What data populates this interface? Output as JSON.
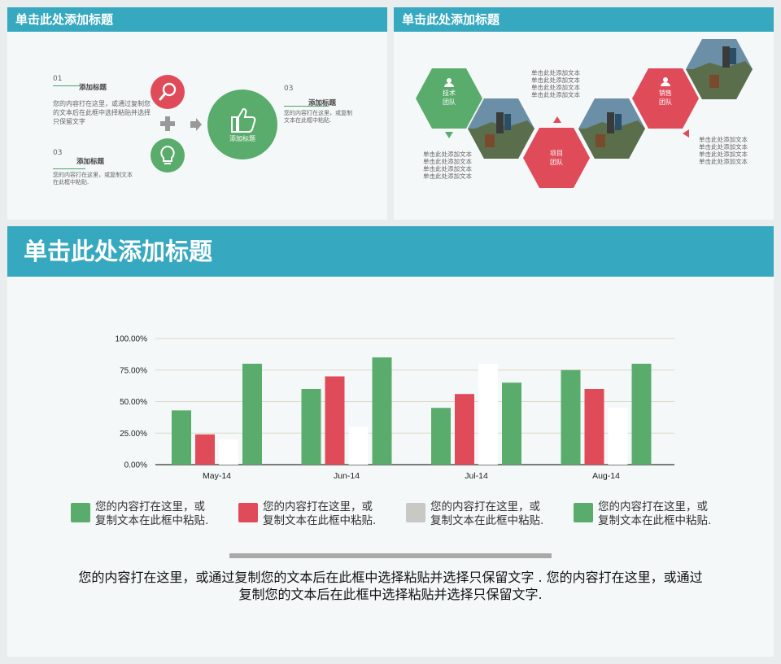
{
  "slide1": {
    "title": "单击此处添加标题",
    "item1_num": "01",
    "item1_title": "添加标题",
    "item1_text": "您的内容打在这里，或通过复制您的文本后在此框中选择粘贴并选择只保留文字",
    "item2_num": "03",
    "item2_title": "添加标题",
    "item2_text": "您的内容打在这里，或复制文本在此框中粘贴.",
    "item3_num": "03",
    "item3_title": "添加标题",
    "item3_text": "您的内容打在这里，或复制文本在此框中粘贴.",
    "center_label": "添加标题",
    "colors": {
      "red": "#e04b5a",
      "green": "#5aac6c"
    }
  },
  "slide2": {
    "title": "单击此处添加标题",
    "hex1_label": "技术\n团队",
    "hex2_label": "项目\n团队",
    "hex3_label": "销售\n团队",
    "text_top": "单击此处添加文本\n单击此处添加文本\n单击此处添加文本\n单击此处添加文本",
    "text_left": "单击此处添加文本\n单击此处添加文本\n单击此处添加文本\n单击此处添加文本",
    "text_right": "单击此处添加文本\n单击此处添加文本\n单击此处添加文本\n单击此处添加文本"
  },
  "slide3": {
    "title": "单击此处添加标题",
    "legend": [
      {
        "text": "您的内容打在这里，或\n复制文本在此框中粘贴.",
        "color": "#5aac6c"
      },
      {
        "text": "您的内容打在这里，或\n复制文本在此框中粘贴.",
        "color": "#e04b5a"
      },
      {
        "text": "您的内容打在这里，或\n复制文本在此框中粘贴.",
        "color": "#c8c8c4"
      },
      {
        "text": "您的内容打在这里，或\n复制文本在此框中粘贴.",
        "color": "#5aac6c"
      }
    ],
    "body_text": "您的内容打在这里，或通过复制您的文本后在此框中选择粘贴并选择只保留文字 . 您的内容打在这里，或通过复制您的文本后在此框中选择粘贴并选择只保留文字."
  },
  "chart_data": {
    "type": "bar",
    "categories": [
      "May-14",
      "Jun-14",
      "Jul-14",
      "Aug-14"
    ],
    "series": [
      {
        "values": [
          0.43,
          0.6,
          0.45,
          0.75
        ],
        "color": "#5aac6c"
      },
      {
        "values": [
          0.24,
          0.7,
          0.56,
          0.6
        ],
        "color": "#e04b5a"
      },
      {
        "values": [
          0.2,
          0.3,
          0.8,
          0.45
        ],
        "color": "#ffffff"
      },
      {
        "values": [
          0.8,
          0.85,
          0.65,
          0.8
        ],
        "color": "#5aac6c"
      }
    ],
    "y_ticks": [
      "0.00%",
      "25.00%",
      "50.00%",
      "75.00%",
      "100.00%"
    ],
    "ylim": [
      0,
      1
    ],
    "grid": true
  }
}
